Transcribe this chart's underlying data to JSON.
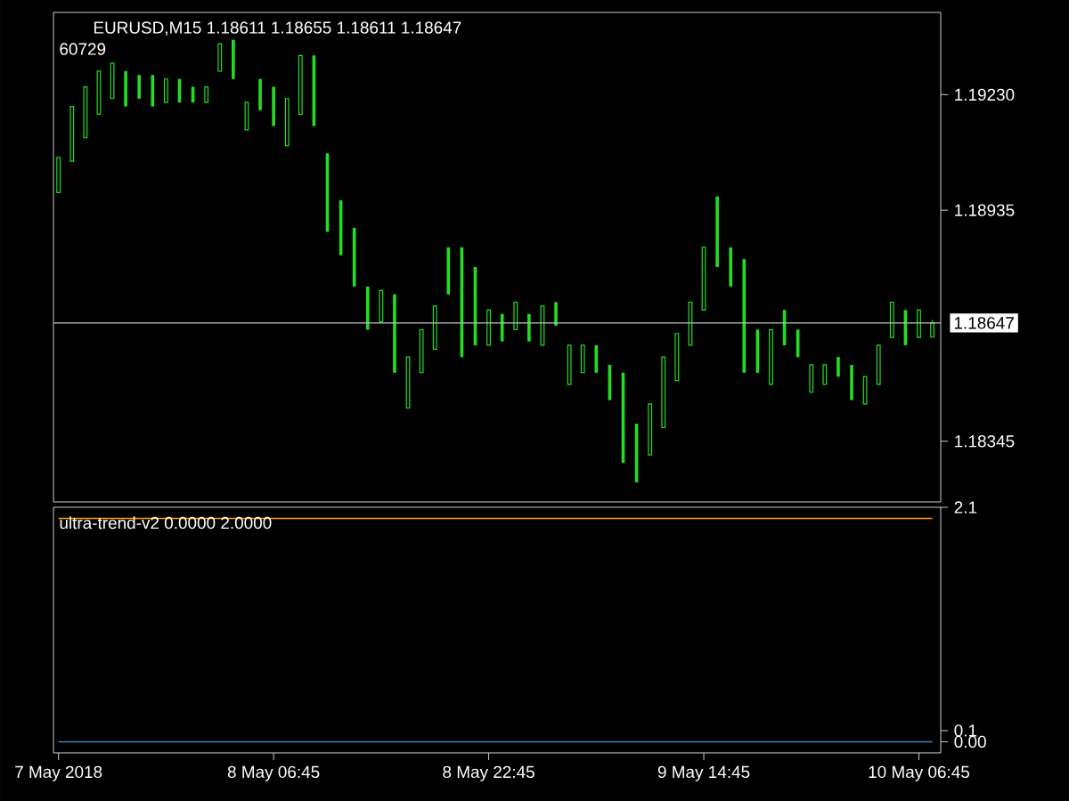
{
  "chart_data": [
    {
      "type": "candlestick",
      "title": "EURUSD,M15  1.18611 1.18655 1.18611 1.18647",
      "subtitle": "60729",
      "color": "#22dd22",
      "categories": [
        null,
        null,
        null,
        null,
        null,
        null,
        null,
        null,
        null,
        null,
        null,
        null,
        null,
        null,
        null,
        null,
        null,
        null,
        null,
        null,
        null,
        null,
        null,
        null,
        null,
        null,
        null,
        null,
        null,
        null,
        null,
        null,
        null,
        null,
        null,
        null,
        null,
        null,
        null,
        null,
        null,
        null,
        null,
        null,
        null,
        null,
        null,
        null,
        null,
        null,
        null,
        null,
        null,
        null,
        null,
        null,
        null,
        null,
        null,
        null,
        null,
        null,
        null,
        null,
        null,
        null
      ],
      "ohlc": [
        [
          1.1898,
          1.1907,
          1.1898,
          1.1907
        ],
        [
          1.1906,
          1.192,
          1.1906,
          1.192
        ],
        [
          1.1912,
          1.1925,
          1.1912,
          1.1925
        ],
        [
          1.1918,
          1.1929,
          1.1918,
          1.1929
        ],
        [
          1.1922,
          1.1931,
          1.1922,
          1.1931
        ],
        [
          1.1929,
          1.1929,
          1.192,
          1.192
        ],
        [
          1.1928,
          1.1928,
          1.1922,
          1.1922
        ],
        [
          1.1928,
          1.1928,
          1.192,
          1.192
        ],
        [
          1.1921,
          1.1927,
          1.1921,
          1.1927
        ],
        [
          1.1927,
          1.1927,
          1.1921,
          1.1921
        ],
        [
          1.1925,
          1.1925,
          1.1921,
          1.1921
        ],
        [
          1.1921,
          1.1925,
          1.1921,
          1.1925
        ],
        [
          1.1929,
          1.1936,
          1.1929,
          1.1936
        ],
        [
          1.1937,
          1.1937,
          1.1927,
          1.1927
        ],
        [
          1.1914,
          1.1921,
          1.1914,
          1.1921
        ],
        [
          1.1927,
          1.1927,
          1.1919,
          1.1919
        ],
        [
          1.1925,
          1.1925,
          1.1915,
          1.1915
        ],
        [
          1.191,
          1.1922,
          1.191,
          1.1922
        ],
        [
          1.1918,
          1.1933,
          1.1918,
          1.1933
        ],
        [
          1.1933,
          1.1933,
          1.1915,
          1.1915
        ],
        [
          1.1908,
          1.1908,
          1.1888,
          1.1888
        ],
        [
          1.1896,
          1.1896,
          1.1882,
          1.1882
        ],
        [
          1.1889,
          1.1889,
          1.1874,
          1.1874
        ],
        [
          1.1874,
          1.1874,
          1.1863,
          1.1863
        ],
        [
          1.1865,
          1.1873,
          1.1865,
          1.1873
        ],
        [
          1.1872,
          1.1872,
          1.1852,
          1.1852
        ],
        [
          1.1843,
          1.1856,
          1.1843,
          1.1856
        ],
        [
          1.1852,
          1.1863,
          1.1852,
          1.1863
        ],
        [
          1.1858,
          1.1869,
          1.1858,
          1.1869
        ],
        [
          1.1884,
          1.1884,
          1.1872,
          1.1872
        ],
        [
          1.1884,
          1.1884,
          1.1856,
          1.1856
        ],
        [
          1.1879,
          1.1879,
          1.1859,
          1.1859
        ],
        [
          1.1859,
          1.1868,
          1.1859,
          1.1868
        ],
        [
          1.1867,
          1.1867,
          1.186,
          1.186
        ],
        [
          1.1863,
          1.187,
          1.1863,
          1.187
        ],
        [
          1.1867,
          1.1867,
          1.186,
          1.186
        ],
        [
          1.1859,
          1.1869,
          1.1859,
          1.1869
        ],
        [
          1.187,
          1.187,
          1.1864,
          1.1864
        ],
        [
          1.1849,
          1.1859,
          1.1849,
          1.1859
        ],
        [
          1.1852,
          1.1859,
          1.1852,
          1.1859
        ],
        [
          1.1859,
          1.1859,
          1.1852,
          1.1852
        ],
        [
          1.1854,
          1.1854,
          1.1845,
          1.1845
        ],
        [
          1.1852,
          1.1852,
          1.1829,
          1.1829
        ],
        [
          1.1839,
          1.1839,
          1.1824,
          1.1824
        ],
        [
          1.1831,
          1.1844,
          1.1831,
          1.1844
        ],
        [
          1.1838,
          1.1856,
          1.1838,
          1.1856
        ],
        [
          1.185,
          1.1862,
          1.185,
          1.1862
        ],
        [
          1.1859,
          1.187,
          1.1859,
          1.187
        ],
        [
          1.1868,
          1.1884,
          1.1868,
          1.1884
        ],
        [
          1.1897,
          1.1897,
          1.1879,
          1.1879
        ],
        [
          1.1884,
          1.1884,
          1.1874,
          1.1874
        ],
        [
          1.1881,
          1.1881,
          1.1852,
          1.1852
        ],
        [
          1.1863,
          1.1863,
          1.1852,
          1.1852
        ],
        [
          1.1849,
          1.1863,
          1.1849,
          1.1863
        ],
        [
          1.1868,
          1.1868,
          1.1859,
          1.1859
        ],
        [
          1.1863,
          1.1863,
          1.1856,
          1.1856
        ],
        [
          1.1847,
          1.1854,
          1.1847,
          1.1854
        ],
        [
          1.1849,
          1.1854,
          1.1849,
          1.1854
        ],
        [
          1.1856,
          1.1856,
          1.1851,
          1.1851
        ],
        [
          1.1854,
          1.1854,
          1.1845,
          1.1845
        ],
        [
          1.1844,
          1.1851,
          1.1844,
          1.1851
        ],
        [
          1.1849,
          1.1859,
          1.1849,
          1.1859
        ],
        [
          1.1861,
          1.187,
          1.1861,
          1.187
        ],
        [
          1.1868,
          1.1868,
          1.1859,
          1.1859
        ],
        [
          1.1861,
          1.1868,
          1.1861,
          1.1868
        ],
        [
          1.18611,
          1.18655,
          1.18611,
          1.18647
        ]
      ],
      "ylim": [
        1.1819,
        1.1944
      ],
      "yticks": [
        {
          "value": 1.1923,
          "label": "1.19230"
        },
        1.18935,
        1.18345
      ],
      "ref_lines": [
        {
          "axis": "y",
          "value": 1.18647,
          "label": "1.18647",
          "color": "#c0c0c0"
        }
      ],
      "tick_labels": "y"
    },
    {
      "type": "line",
      "title": "ultra-trend-v2 0.0000 2.0000",
      "categories": [
        "7 May 2018",
        null,
        null,
        null,
        null,
        null,
        null,
        null,
        null,
        null,
        null,
        null,
        null,
        null,
        null,
        null,
        "8 May 06:45",
        null,
        null,
        null,
        null,
        null,
        null,
        null,
        null,
        null,
        null,
        null,
        null,
        null,
        null,
        null,
        "8 May 22:45",
        null,
        null,
        null,
        null,
        null,
        null,
        null,
        null,
        null,
        null,
        null,
        null,
        null,
        null,
        null,
        "9 May 14:45",
        null,
        null,
        null,
        null,
        null,
        null,
        null,
        null,
        null,
        null,
        null,
        null,
        null,
        null,
        null,
        "10 May 06:45",
        null
      ],
      "series": [
        {
          "color": "#ff9900",
          "values": [
            2,
            2,
            2,
            2,
            2,
            2,
            2,
            2,
            2,
            2,
            2,
            2,
            2,
            2,
            2,
            2,
            2,
            2,
            2,
            2,
            2,
            2,
            2,
            2,
            2,
            2,
            2,
            2,
            2,
            2,
            2,
            2,
            2,
            2,
            2,
            2,
            2,
            2,
            2,
            2,
            2,
            2,
            2,
            2,
            2,
            2,
            2,
            2,
            2,
            2,
            2,
            2,
            2,
            2,
            2,
            2,
            2,
            2,
            2,
            2,
            2,
            2,
            2,
            2,
            2,
            2
          ]
        },
        {
          "color": "#4080c8",
          "values": [
            0,
            0,
            0,
            0,
            0,
            0,
            0,
            0,
            0,
            0,
            0,
            0,
            0,
            0,
            0,
            0,
            0,
            0,
            0,
            0,
            0,
            0,
            0,
            0,
            0,
            0,
            0,
            0,
            0,
            0,
            0,
            0,
            0,
            0,
            0,
            0,
            0,
            0,
            0,
            0,
            0,
            0,
            0,
            0,
            0,
            0,
            0,
            0,
            0,
            0,
            0,
            0,
            0,
            0,
            0,
            0,
            0,
            0,
            0,
            0,
            0,
            0,
            0,
            0,
            0,
            0
          ]
        }
      ],
      "ylim": [
        -0.1,
        2.1
      ],
      "yticks": [
        2.1,
        {
          "value": 0.1,
          "label": "0.1"
        },
        {
          "value": 0,
          "label": "0.00"
        }
      ]
    }
  ]
}
